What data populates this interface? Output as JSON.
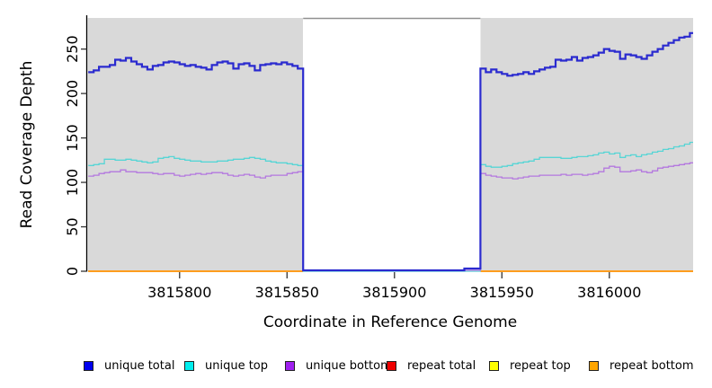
{
  "figure": {
    "background": "#FFFFFF",
    "plot_background": "#D9D9D9",
    "gap_fill": "#FFFFFF",
    "gap_border_color": "#909090",
    "axis_color": "#000000",
    "tick_color": "#333333"
  },
  "chart_data": {
    "type": "line",
    "step": true,
    "title": "",
    "xlabel": "Coordinate in Reference Genome",
    "ylabel": "Read Coverage Depth",
    "xlim": [
      3815757,
      3816039
    ],
    "ylim": [
      0,
      285
    ],
    "x_ticks": [
      3815800,
      3815850,
      3815900,
      3815950,
      3816000
    ],
    "y_ticks": [
      0,
      50,
      100,
      150,
      200,
      250
    ],
    "grid": false,
    "legend_position": "bottom",
    "gap_region": {
      "start": 3815857.5,
      "end": 3815940
    },
    "x0": 3815757.5,
    "dx": 2.5,
    "series": [
      {
        "name": "unique total",
        "color": "#2A2ACF",
        "swatch": "#0000EE",
        "width": 2.2,
        "z": 6,
        "values": [
          224,
          226,
          230,
          230,
          232,
          238,
          237,
          240,
          236,
          233,
          230,
          227,
          231,
          232,
          235,
          236,
          235,
          233,
          231,
          232,
          230,
          229,
          227,
          232,
          235,
          236,
          234,
          228,
          233,
          234,
          231,
          226,
          232,
          233,
          234,
          233,
          235,
          233,
          231,
          228,
          1,
          1,
          1,
          1,
          1,
          1,
          1,
          1,
          1,
          1,
          1,
          1,
          1,
          1,
          1,
          1,
          1,
          1,
          1,
          1,
          1,
          1,
          1,
          1,
          1,
          1,
          1,
          1,
          1,
          1,
          3,
          3,
          3,
          228,
          224,
          227,
          224,
          222,
          220,
          221,
          222,
          224,
          222,
          225,
          227,
          229,
          230,
          238,
          237,
          238,
          241,
          237,
          240,
          241,
          243,
          246,
          250,
          248,
          247,
          239,
          244,
          243,
          241,
          239,
          243,
          247,
          250,
          254,
          257,
          260,
          263,
          264,
          268,
          275
        ]
      },
      {
        "name": "unique top",
        "color": "#58D5D5",
        "swatch": "#00EEEE",
        "width": 1.3,
        "z": 4,
        "values": [
          119,
          120,
          121,
          126,
          126,
          125,
          125,
          126,
          125,
          124,
          123,
          122,
          123,
          127,
          128,
          129,
          127,
          126,
          125,
          124,
          124,
          123,
          123,
          123,
          124,
          124,
          125,
          126,
          126,
          127,
          128,
          127,
          126,
          124,
          123,
          122,
          122,
          121,
          120,
          119,
          0,
          0,
          0,
          0,
          0,
          0,
          0,
          0,
          0,
          0,
          0,
          0,
          0,
          0,
          0,
          0,
          0,
          0,
          0,
          0,
          0,
          0,
          0,
          0,
          0,
          0,
          0,
          0,
          0,
          0,
          0,
          0,
          0,
          120,
          118,
          117,
          117,
          118,
          119,
          121,
          122,
          123,
          124,
          126,
          128,
          128,
          128,
          128,
          127,
          127,
          128,
          129,
          129,
          130,
          131,
          133,
          134,
          132,
          133,
          128,
          130,
          131,
          129,
          131,
          132,
          134,
          135,
          137,
          138,
          140,
          141,
          143,
          145,
          150
        ]
      },
      {
        "name": "unique bottom",
        "color": "#B478DF",
        "swatch": "#A020F0",
        "width": 1.3,
        "z": 5,
        "values": [
          107,
          108,
          110,
          111,
          112,
          112,
          114,
          112,
          112,
          111,
          111,
          111,
          110,
          109,
          110,
          110,
          108,
          107,
          108,
          109,
          110,
          109,
          110,
          111,
          111,
          110,
          108,
          107,
          108,
          109,
          108,
          106,
          105,
          107,
          108,
          108,
          108,
          110,
          111,
          112,
          1,
          1,
          1,
          1,
          1,
          1,
          1,
          1,
          1,
          1,
          1,
          1,
          1,
          1,
          1,
          1,
          1,
          1,
          1,
          1,
          1,
          1,
          1,
          1,
          1,
          1,
          1,
          1,
          1,
          1,
          1,
          1,
          1,
          110,
          108,
          107,
          106,
          105,
          105,
          104,
          105,
          106,
          107,
          107,
          108,
          108,
          108,
          108,
          109,
          108,
          109,
          109,
          108,
          109,
          110,
          112,
          116,
          118,
          117,
          112,
          112,
          113,
          114,
          112,
          111,
          113,
          116,
          117,
          118,
          119,
          120,
          121,
          122,
          123
        ]
      },
      {
        "name": "repeat total",
        "color": "#DE0000",
        "swatch": "#EE0000",
        "width": 1.3,
        "z": 1,
        "values": [
          0,
          0,
          0,
          0,
          0,
          0,
          0,
          0,
          0,
          0,
          0,
          0,
          0,
          0,
          0,
          0,
          0,
          0,
          0,
          0,
          0,
          0,
          0,
          0,
          0,
          0,
          0,
          0,
          0,
          0,
          0,
          0,
          0,
          0,
          0,
          0,
          0,
          0,
          0,
          0,
          null,
          null,
          null,
          null,
          null,
          null,
          null,
          null,
          null,
          null,
          null,
          null,
          null,
          null,
          null,
          null,
          null,
          null,
          null,
          null,
          null,
          null,
          null,
          null,
          null,
          null,
          null,
          null,
          null,
          null,
          null,
          null,
          null,
          0,
          0,
          0,
          0,
          0,
          0,
          0,
          0,
          0,
          0,
          0,
          0,
          0,
          0,
          0,
          0,
          0,
          0,
          0,
          0,
          0,
          0,
          0,
          0,
          0,
          0,
          0,
          0,
          0,
          0,
          0,
          0,
          0,
          0,
          0,
          0,
          0,
          0,
          0,
          0,
          0
        ]
      },
      {
        "name": "repeat top",
        "color": "#FFFF00",
        "swatch": "#FFFF00",
        "width": 1.3,
        "z": 2,
        "values": [
          0,
          0,
          0,
          0,
          0,
          0,
          0,
          0,
          0,
          0,
          0,
          0,
          0,
          0,
          0,
          0,
          0,
          0,
          0,
          0,
          0,
          0,
          0,
          0,
          0,
          0,
          0,
          0,
          0,
          0,
          0,
          0,
          0,
          0,
          0,
          0,
          0,
          0,
          0,
          0,
          null,
          null,
          null,
          null,
          null,
          null,
          null,
          null,
          null,
          null,
          null,
          null,
          null,
          null,
          null,
          null,
          null,
          null,
          null,
          null,
          null,
          null,
          null,
          null,
          null,
          null,
          null,
          null,
          null,
          null,
          null,
          null,
          null,
          0,
          0,
          0,
          0,
          0,
          0,
          0,
          0,
          0,
          0,
          0,
          0,
          0,
          0,
          0,
          0,
          0,
          0,
          0,
          0,
          0,
          0,
          0,
          0,
          0,
          0,
          0,
          0,
          0,
          0,
          0,
          0,
          0,
          0,
          0,
          0,
          0,
          0,
          0,
          0,
          0
        ]
      },
      {
        "name": "repeat bottom",
        "color": "#FF9D1E",
        "swatch": "#FFA500",
        "width": 2.0,
        "z": 3,
        "values": [
          0,
          0,
          0,
          0,
          0,
          0,
          0,
          0,
          0,
          0,
          0,
          0,
          0,
          0,
          0,
          0,
          0,
          0,
          0,
          0,
          0,
          0,
          0,
          0,
          0,
          0,
          0,
          0,
          0,
          0,
          0,
          0,
          0,
          0,
          0,
          0,
          0,
          0,
          0,
          0,
          null,
          null,
          null,
          null,
          null,
          null,
          null,
          null,
          null,
          null,
          null,
          null,
          null,
          null,
          null,
          null,
          null,
          null,
          null,
          null,
          null,
          null,
          null,
          null,
          null,
          null,
          null,
          null,
          null,
          null,
          null,
          null,
          null,
          0,
          0,
          0,
          0,
          0,
          0,
          0,
          0,
          0,
          0,
          0,
          0,
          0,
          0,
          0,
          0,
          0,
          0,
          0,
          0,
          0,
          0,
          0,
          0,
          0,
          0,
          0,
          0,
          0,
          0,
          0,
          0,
          0,
          0,
          0,
          0,
          0,
          0,
          0,
          0,
          0
        ]
      }
    ]
  }
}
